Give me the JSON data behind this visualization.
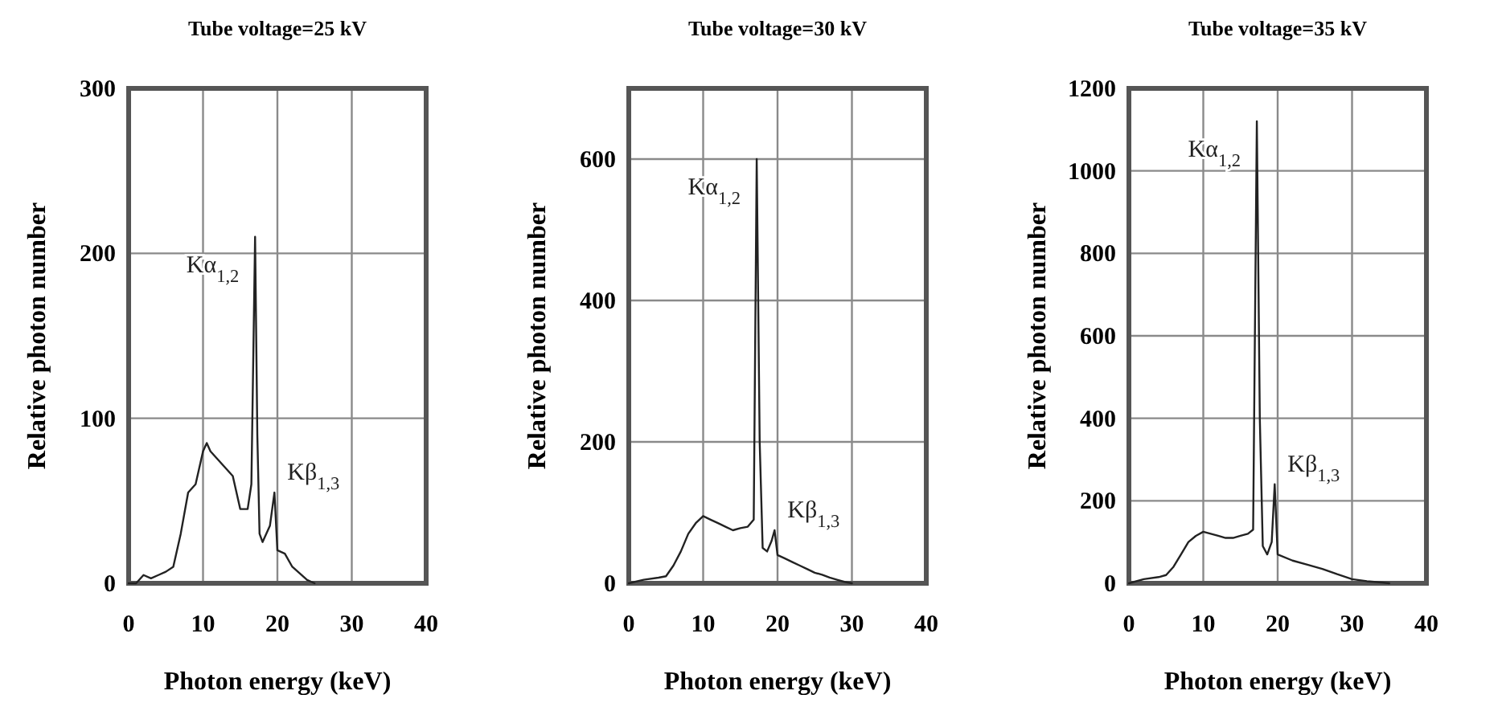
{
  "chart_data": [
    {
      "type": "line",
      "title": "Tube voltage=25 kV",
      "xlabel": "Photon energy (keV)",
      "ylabel": "Relative photon number",
      "xlim": [
        0,
        40
      ],
      "xticks": [
        0,
        10,
        20,
        30,
        40
      ],
      "ylim": [
        0,
        300
      ],
      "yticks": [
        0,
        100,
        200,
        300
      ],
      "grid": true,
      "marker": "none",
      "line_style": "solid",
      "series": [
        {
          "color": "#222222",
          "x": [
            0,
            1,
            2,
            3,
            4,
            5,
            6,
            7,
            8,
            9,
            10,
            10.5,
            11,
            12,
            13,
            14,
            15,
            16,
            16.5,
            17,
            17.3,
            17.6,
            18,
            19,
            19.6,
            20,
            21,
            22,
            23,
            24,
            25
          ],
          "values": [
            0,
            0,
            5,
            3,
            5,
            7,
            10,
            30,
            55,
            60,
            80,
            85,
            80,
            75,
            70,
            65,
            45,
            45,
            60,
            210,
            90,
            30,
            25,
            35,
            55,
            20,
            18,
            10,
            6,
            2,
            0
          ]
        }
      ],
      "annotations": [
        {
          "text": "Kα$_{1,2}$",
          "x": 17,
          "y": 210
        },
        {
          "text": "Kβ$_{1,3}$",
          "x": 19.6,
          "y": 55
        }
      ]
    },
    {
      "type": "line",
      "title": "Tube voltage=30 kV",
      "xlabel": "Photon energy (keV)",
      "ylabel": "Relative photon number",
      "xlim": [
        0,
        40
      ],
      "xticks": [
        0,
        10,
        20,
        30,
        40
      ],
      "ylim": [
        0,
        700
      ],
      "yticks": [
        0,
        200,
        400,
        600
      ],
      "grid": true,
      "marker": "none",
      "line_style": "solid",
      "series": [
        {
          "color": "#222222",
          "x": [
            0,
            2,
            4,
            5,
            6,
            7,
            8,
            9,
            10,
            11,
            12,
            13,
            14,
            15,
            16,
            16.8,
            17.2,
            17.6,
            18,
            18.6,
            19.2,
            19.6,
            20,
            21,
            22,
            23,
            24,
            25,
            26,
            27,
            28,
            29,
            30
          ],
          "values": [
            0,
            5,
            8,
            10,
            25,
            45,
            70,
            85,
            95,
            90,
            85,
            80,
            75,
            78,
            80,
            90,
            600,
            200,
            50,
            45,
            60,
            75,
            40,
            35,
            30,
            25,
            20,
            15,
            12,
            8,
            5,
            2,
            0
          ]
        }
      ],
      "annotations": [
        {
          "text": "Kα$_{1,2}$",
          "x": 17.2,
          "y": 600
        },
        {
          "text": "Kβ$_{1,3}$",
          "x": 19.6,
          "y": 75
        }
      ]
    },
    {
      "type": "line",
      "title": "Tube voltage=35 kV",
      "xlabel": "Photon energy (keV)",
      "ylabel": "Relative photon number",
      "xlim": [
        0,
        40
      ],
      "xticks": [
        0,
        10,
        20,
        30,
        40
      ],
      "ylim": [
        0,
        1200
      ],
      "yticks": [
        0,
        200,
        400,
        600,
        800,
        1000,
        1200
      ],
      "grid": true,
      "marker": "none",
      "line_style": "solid",
      "series": [
        {
          "color": "#222222",
          "x": [
            0,
            2,
            4,
            5,
            6,
            7,
            8,
            9,
            10,
            11,
            12,
            13,
            14,
            15,
            16,
            16.7,
            17.2,
            17.6,
            18,
            18.6,
            19.2,
            19.6,
            20,
            22,
            24,
            26,
            28,
            30,
            32,
            34,
            35
          ],
          "values": [
            0,
            10,
            15,
            20,
            40,
            70,
            100,
            115,
            125,
            120,
            115,
            110,
            110,
            115,
            120,
            130,
            1120,
            400,
            90,
            70,
            100,
            240,
            70,
            55,
            45,
            35,
            22,
            10,
            5,
            2,
            0
          ]
        }
      ],
      "annotations": [
        {
          "text": "Kα$_{1,2}$",
          "x": 17.2,
          "y": 1120
        },
        {
          "text": "Kβ$_{1,3}$",
          "x": 19.6,
          "y": 240
        }
      ]
    }
  ]
}
